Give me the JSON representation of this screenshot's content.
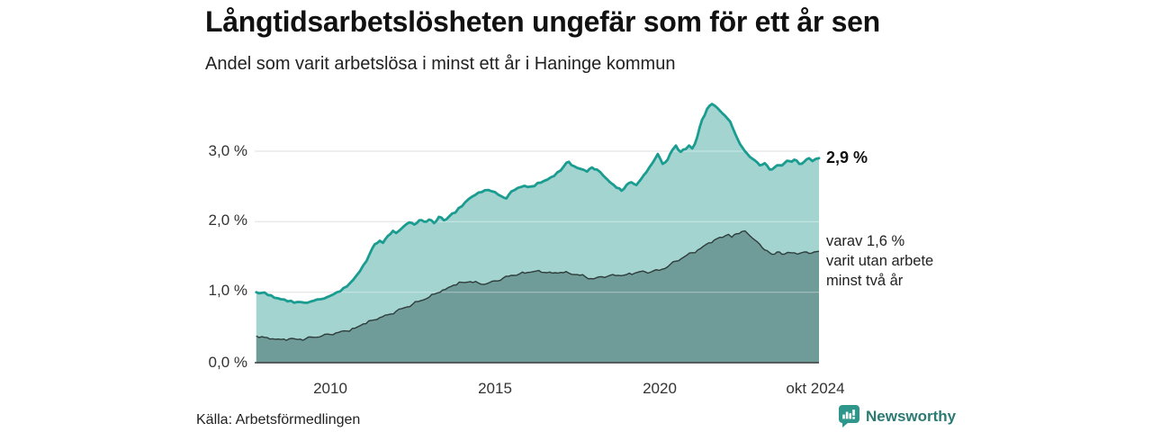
{
  "header": {
    "title": "Långtidsarbetslösheten ungefär som för ett år sen",
    "subtitle": "Andel som varit arbetslösa i minst ett år i Haninge kommun"
  },
  "annotations": {
    "latest_total": "2,9 %",
    "two_year_note": "varav 1,6 %\nvarit utan arbete\nminst två år"
  },
  "footer": {
    "source": "Källa: Arbetsförmedlingen",
    "brand": "Newsworthy"
  },
  "colors": {
    "series_total_fill": "#a3d4d0",
    "series_total_line": "#1a9c90",
    "series_twoyear_fill": "#6f9b98",
    "series_twoyear_line": "#2e3d3b",
    "grid": "#d9d9d9",
    "grid_overlay": "rgba(255,255,255,0.38)",
    "axis": "#3a3a3a",
    "brand": "#2c7a74"
  },
  "chart_data": {
    "type": "area",
    "title": "Långtidsarbetslösheten ungefär som för ett år sen",
    "subtitle": "Andel som varit arbetslösa i minst ett år i Haninge kommun",
    "unit": "%",
    "x_domain": [
      2007.7,
      2024.85
    ],
    "ylim": [
      0,
      3.8
    ],
    "grid": true,
    "yticks": [
      {
        "value": 0,
        "label": "0,0 %"
      },
      {
        "value": 1,
        "label": "1,0 %"
      },
      {
        "value": 2,
        "label": "2,0 %"
      },
      {
        "value": 3,
        "label": "3,0 %"
      }
    ],
    "xticks": [
      {
        "value": 2010,
        "label": "2010"
      },
      {
        "value": 2015,
        "label": "2015"
      },
      {
        "value": 2020,
        "label": "2020"
      },
      {
        "value": 2024.75,
        "label": "okt 2024"
      }
    ],
    "series": [
      {
        "name": "Arbetslösa minst ett år",
        "latest_value": 2.9,
        "points": [
          [
            2007.75,
            1.0
          ],
          [
            2007.9,
            0.99
          ],
          [
            2008.1,
            0.96
          ],
          [
            2008.3,
            0.92
          ],
          [
            2008.5,
            0.9
          ],
          [
            2008.7,
            0.87
          ],
          [
            2008.9,
            0.85
          ],
          [
            2009.1,
            0.86
          ],
          [
            2009.3,
            0.85
          ],
          [
            2009.5,
            0.88
          ],
          [
            2009.7,
            0.9
          ],
          [
            2009.9,
            0.93
          ],
          [
            2010.0,
            0.95
          ],
          [
            2010.2,
            1.0
          ],
          [
            2010.4,
            1.06
          ],
          [
            2010.6,
            1.13
          ],
          [
            2010.8,
            1.24
          ],
          [
            2011.0,
            1.38
          ],
          [
            2011.2,
            1.55
          ],
          [
            2011.35,
            1.68
          ],
          [
            2011.5,
            1.73
          ],
          [
            2011.6,
            1.7
          ],
          [
            2011.75,
            1.8
          ],
          [
            2011.9,
            1.87
          ],
          [
            2012.0,
            1.84
          ],
          [
            2012.2,
            1.92
          ],
          [
            2012.4,
            1.99
          ],
          [
            2012.55,
            1.96
          ],
          [
            2012.7,
            2.02
          ],
          [
            2012.85,
            2.0
          ],
          [
            2013.0,
            2.03
          ],
          [
            2013.15,
            1.98
          ],
          [
            2013.3,
            2.07
          ],
          [
            2013.45,
            2.02
          ],
          [
            2013.6,
            2.07
          ],
          [
            2013.8,
            2.13
          ],
          [
            2014.0,
            2.22
          ],
          [
            2014.2,
            2.32
          ],
          [
            2014.4,
            2.38
          ],
          [
            2014.6,
            2.42
          ],
          [
            2014.8,
            2.45
          ],
          [
            2015.0,
            2.42
          ],
          [
            2015.2,
            2.36
          ],
          [
            2015.35,
            2.33
          ],
          [
            2015.5,
            2.43
          ],
          [
            2015.7,
            2.48
          ],
          [
            2015.9,
            2.51
          ],
          [
            2016.1,
            2.5
          ],
          [
            2016.3,
            2.55
          ],
          [
            2016.5,
            2.58
          ],
          [
            2016.7,
            2.63
          ],
          [
            2016.9,
            2.7
          ],
          [
            2017.1,
            2.79
          ],
          [
            2017.25,
            2.85
          ],
          [
            2017.4,
            2.79
          ],
          [
            2017.6,
            2.75
          ],
          [
            2017.8,
            2.71
          ],
          [
            2017.95,
            2.77
          ],
          [
            2018.1,
            2.74
          ],
          [
            2018.3,
            2.65
          ],
          [
            2018.5,
            2.56
          ],
          [
            2018.7,
            2.48
          ],
          [
            2018.85,
            2.44
          ],
          [
            2019.0,
            2.52
          ],
          [
            2019.15,
            2.56
          ],
          [
            2019.3,
            2.52
          ],
          [
            2019.45,
            2.61
          ],
          [
            2019.6,
            2.7
          ],
          [
            2019.8,
            2.84
          ],
          [
            2019.95,
            2.96
          ],
          [
            2020.1,
            2.82
          ],
          [
            2020.25,
            2.88
          ],
          [
            2020.4,
            3.02
          ],
          [
            2020.5,
            3.08
          ],
          [
            2020.65,
            2.99
          ],
          [
            2020.8,
            3.03
          ],
          [
            2020.9,
            3.08
          ],
          [
            2021.0,
            3.04
          ],
          [
            2021.15,
            3.2
          ],
          [
            2021.3,
            3.45
          ],
          [
            2021.45,
            3.6
          ],
          [
            2021.6,
            3.67
          ],
          [
            2021.7,
            3.64
          ],
          [
            2021.85,
            3.57
          ],
          [
            2022.0,
            3.5
          ],
          [
            2022.15,
            3.42
          ],
          [
            2022.3,
            3.25
          ],
          [
            2022.45,
            3.1
          ],
          [
            2022.6,
            3.0
          ],
          [
            2022.75,
            2.92
          ],
          [
            2022.9,
            2.87
          ],
          [
            2023.05,
            2.8
          ],
          [
            2023.2,
            2.83
          ],
          [
            2023.35,
            2.74
          ],
          [
            2023.5,
            2.77
          ],
          [
            2023.65,
            2.8
          ],
          [
            2023.8,
            2.83
          ],
          [
            2023.95,
            2.86
          ],
          [
            2024.1,
            2.88
          ],
          [
            2024.25,
            2.82
          ],
          [
            2024.4,
            2.85
          ],
          [
            2024.55,
            2.9
          ],
          [
            2024.65,
            2.86
          ],
          [
            2024.75,
            2.89
          ],
          [
            2024.85,
            2.9
          ]
        ]
      },
      {
        "name": "varav utan arbete minst två år",
        "latest_value": 1.6,
        "points": [
          [
            2007.75,
            0.38
          ],
          [
            2008.0,
            0.36
          ],
          [
            2008.25,
            0.34
          ],
          [
            2008.5,
            0.33
          ],
          [
            2008.75,
            0.34
          ],
          [
            2009.0,
            0.33
          ],
          [
            2009.25,
            0.34
          ],
          [
            2009.5,
            0.36
          ],
          [
            2009.75,
            0.38
          ],
          [
            2010.0,
            0.4
          ],
          [
            2010.25,
            0.43
          ],
          [
            2010.5,
            0.45
          ],
          [
            2010.75,
            0.49
          ],
          [
            2011.0,
            0.55
          ],
          [
            2011.25,
            0.6
          ],
          [
            2011.5,
            0.64
          ],
          [
            2011.75,
            0.68
          ],
          [
            2012.0,
            0.73
          ],
          [
            2012.25,
            0.78
          ],
          [
            2012.5,
            0.83
          ],
          [
            2012.75,
            0.88
          ],
          [
            2013.0,
            0.93
          ],
          [
            2013.25,
            0.99
          ],
          [
            2013.5,
            1.04
          ],
          [
            2013.75,
            1.1
          ],
          [
            2014.0,
            1.14
          ],
          [
            2014.25,
            1.15
          ],
          [
            2014.5,
            1.13
          ],
          [
            2014.75,
            1.12
          ],
          [
            2015.0,
            1.16
          ],
          [
            2015.25,
            1.2
          ],
          [
            2015.5,
            1.24
          ],
          [
            2015.75,
            1.26
          ],
          [
            2016.0,
            1.28
          ],
          [
            2016.25,
            1.3
          ],
          [
            2016.5,
            1.28
          ],
          [
            2016.75,
            1.27
          ],
          [
            2017.0,
            1.28
          ],
          [
            2017.25,
            1.27
          ],
          [
            2017.5,
            1.25
          ],
          [
            2017.75,
            1.22
          ],
          [
            2018.0,
            1.19
          ],
          [
            2018.25,
            1.22
          ],
          [
            2018.5,
            1.24
          ],
          [
            2018.75,
            1.24
          ],
          [
            2019.0,
            1.25
          ],
          [
            2019.25,
            1.27
          ],
          [
            2019.5,
            1.3
          ],
          [
            2019.65,
            1.27
          ],
          [
            2019.8,
            1.3
          ],
          [
            2020.0,
            1.31
          ],
          [
            2020.25,
            1.36
          ],
          [
            2020.5,
            1.44
          ],
          [
            2020.75,
            1.5
          ],
          [
            2021.0,
            1.56
          ],
          [
            2021.25,
            1.62
          ],
          [
            2021.5,
            1.7
          ],
          [
            2021.75,
            1.76
          ],
          [
            2022.0,
            1.8
          ],
          [
            2022.1,
            1.82
          ],
          [
            2022.2,
            1.78
          ],
          [
            2022.35,
            1.83
          ],
          [
            2022.5,
            1.86
          ],
          [
            2022.6,
            1.87
          ],
          [
            2022.75,
            1.8
          ],
          [
            2022.9,
            1.74
          ],
          [
            2023.05,
            1.68
          ],
          [
            2023.2,
            1.6
          ],
          [
            2023.35,
            1.56
          ],
          [
            2023.5,
            1.54
          ],
          [
            2023.65,
            1.57
          ],
          [
            2023.8,
            1.54
          ],
          [
            2024.0,
            1.56
          ],
          [
            2024.2,
            1.54
          ],
          [
            2024.4,
            1.57
          ],
          [
            2024.55,
            1.55
          ],
          [
            2024.7,
            1.57
          ],
          [
            2024.85,
            1.58
          ]
        ]
      }
    ]
  }
}
